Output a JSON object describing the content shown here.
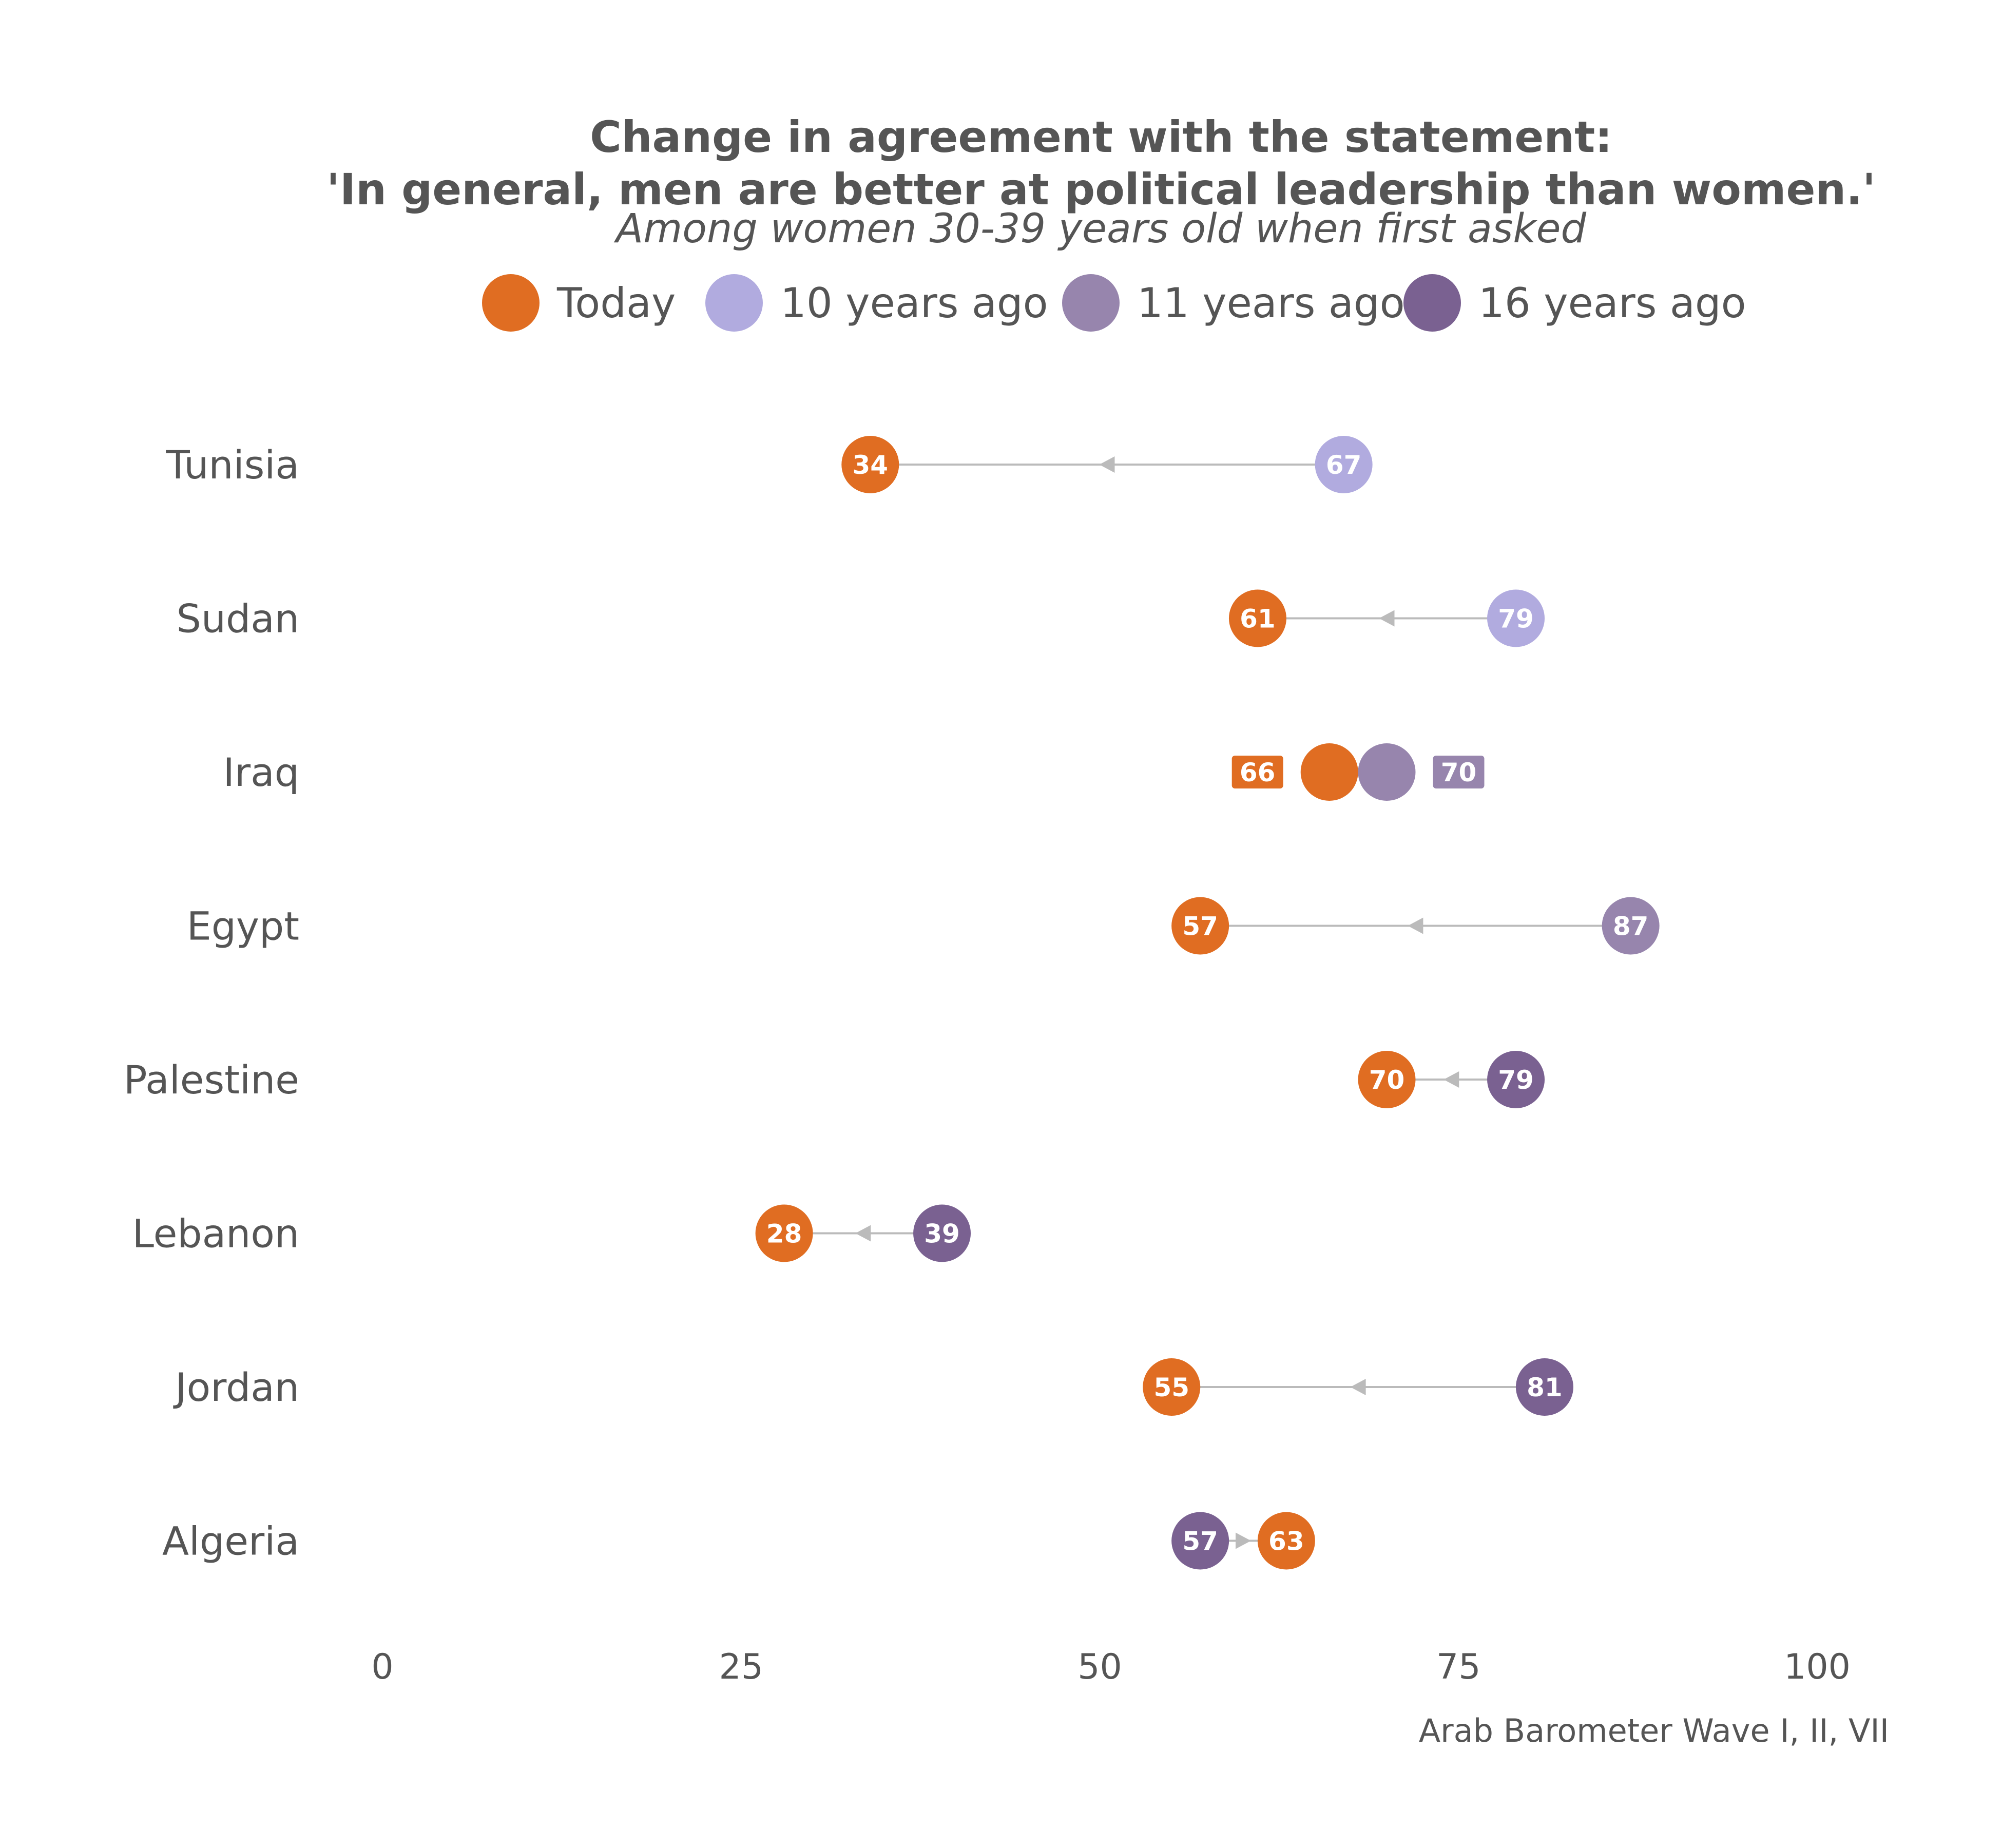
{
  "chart_data": {
    "type": "dumbbell",
    "title_line1": "Change in agreement with the statement:",
    "title_line2": "'In general, men are better at political leadership than women.'",
    "subtitle": "Among women 30-39 years old when first asked",
    "caption": "Arab Barometer Wave I, II, VII",
    "xlim": [
      0,
      100
    ],
    "xticks": [
      "0",
      "25",
      "50",
      "75",
      "100"
    ],
    "xtick_values": [
      0,
      25,
      50,
      75,
      100
    ],
    "grid": false,
    "legend_position": "top",
    "legend": [
      {
        "key": "today",
        "label": "Today",
        "color": "#E06D22"
      },
      {
        "key": "10y",
        "label": "10 years ago",
        "color": "#B1ABDF"
      },
      {
        "key": "11y",
        "label": "11 years ago",
        "color": "#9785AD"
      },
      {
        "key": "16y",
        "label": "16 years ago",
        "color": "#7A6191"
      }
    ],
    "connector_color": "#BBBBBB",
    "rows": [
      {
        "country": "Tunisia",
        "today": 34,
        "past": 67,
        "past_key": "10y",
        "today_label": "34",
        "past_label": "67",
        "label_style": "inside"
      },
      {
        "country": "Sudan",
        "today": 61,
        "past": 79,
        "past_key": "10y",
        "today_label": "61",
        "past_label": "79",
        "label_style": "inside"
      },
      {
        "country": "Iraq",
        "today": 66,
        "past": 70,
        "past_key": "11y",
        "today_label": "66",
        "past_label": "70",
        "label_style": "outside"
      },
      {
        "country": "Egypt",
        "today": 57,
        "past": 87,
        "past_key": "11y",
        "today_label": "57",
        "past_label": "87",
        "label_style": "inside"
      },
      {
        "country": "Palestine",
        "today": 70,
        "past": 79,
        "past_key": "16y",
        "today_label": "70",
        "past_label": "79",
        "label_style": "inside"
      },
      {
        "country": "Lebanon",
        "today": 28,
        "past": 39,
        "past_key": "16y",
        "today_label": "28",
        "past_label": "39",
        "label_style": "inside"
      },
      {
        "country": "Jordan",
        "today": 55,
        "past": 81,
        "past_key": "16y",
        "today_label": "55",
        "past_label": "81",
        "label_style": "inside"
      },
      {
        "country": "Algeria",
        "today": 63,
        "past": 57,
        "past_key": "16y",
        "today_label": "63",
        "past_label": "57",
        "label_style": "inside"
      }
    ]
  }
}
